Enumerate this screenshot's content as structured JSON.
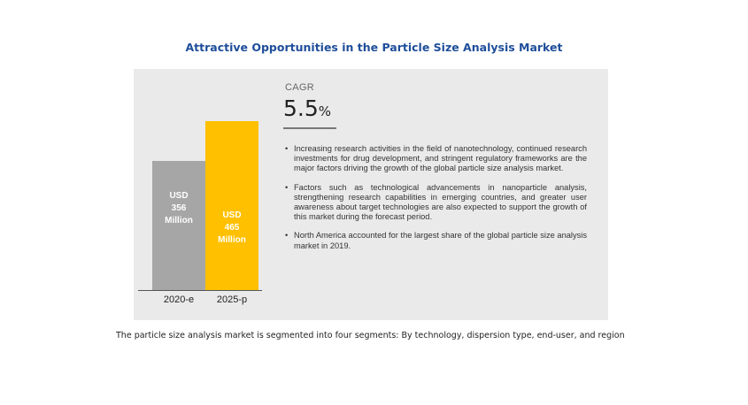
{
  "title": "Attractive Opportunities in the Particle Size Analysis Market",
  "cagr": {
    "label": "CAGR",
    "value": "5.5",
    "unit": "%"
  },
  "bullets": [
    "Increasing research activities in the field of nanotechnology, continued research investments for drug development, and stringent regulatory frameworks are the major factors driving the growth of the global particle size analysis market.",
    "Factors such as technological advancements in nanoparticle analysis, strengthening research capabilities in emerging countries, and greater user awareness about target technologies are also expected to support the growth of this market during the forecast period.",
    "North America accounted for the largest share of the global particle size analysis market in 2019."
  ],
  "footnote": "The particle size analysis market is segmented into four segments: By technology, dispersion type, end-user, and region",
  "chart_data": {
    "type": "bar",
    "categories": [
      "2020-e",
      "2025-p"
    ],
    "values": [
      356,
      465
    ],
    "data_labels": [
      [
        "USD",
        "356",
        "Million"
      ],
      [
        "USD",
        "465",
        "Million"
      ]
    ],
    "colors": [
      "#a6a6a6",
      "#ffc000"
    ],
    "ylim": [
      0,
      530
    ],
    "grid": false
  }
}
